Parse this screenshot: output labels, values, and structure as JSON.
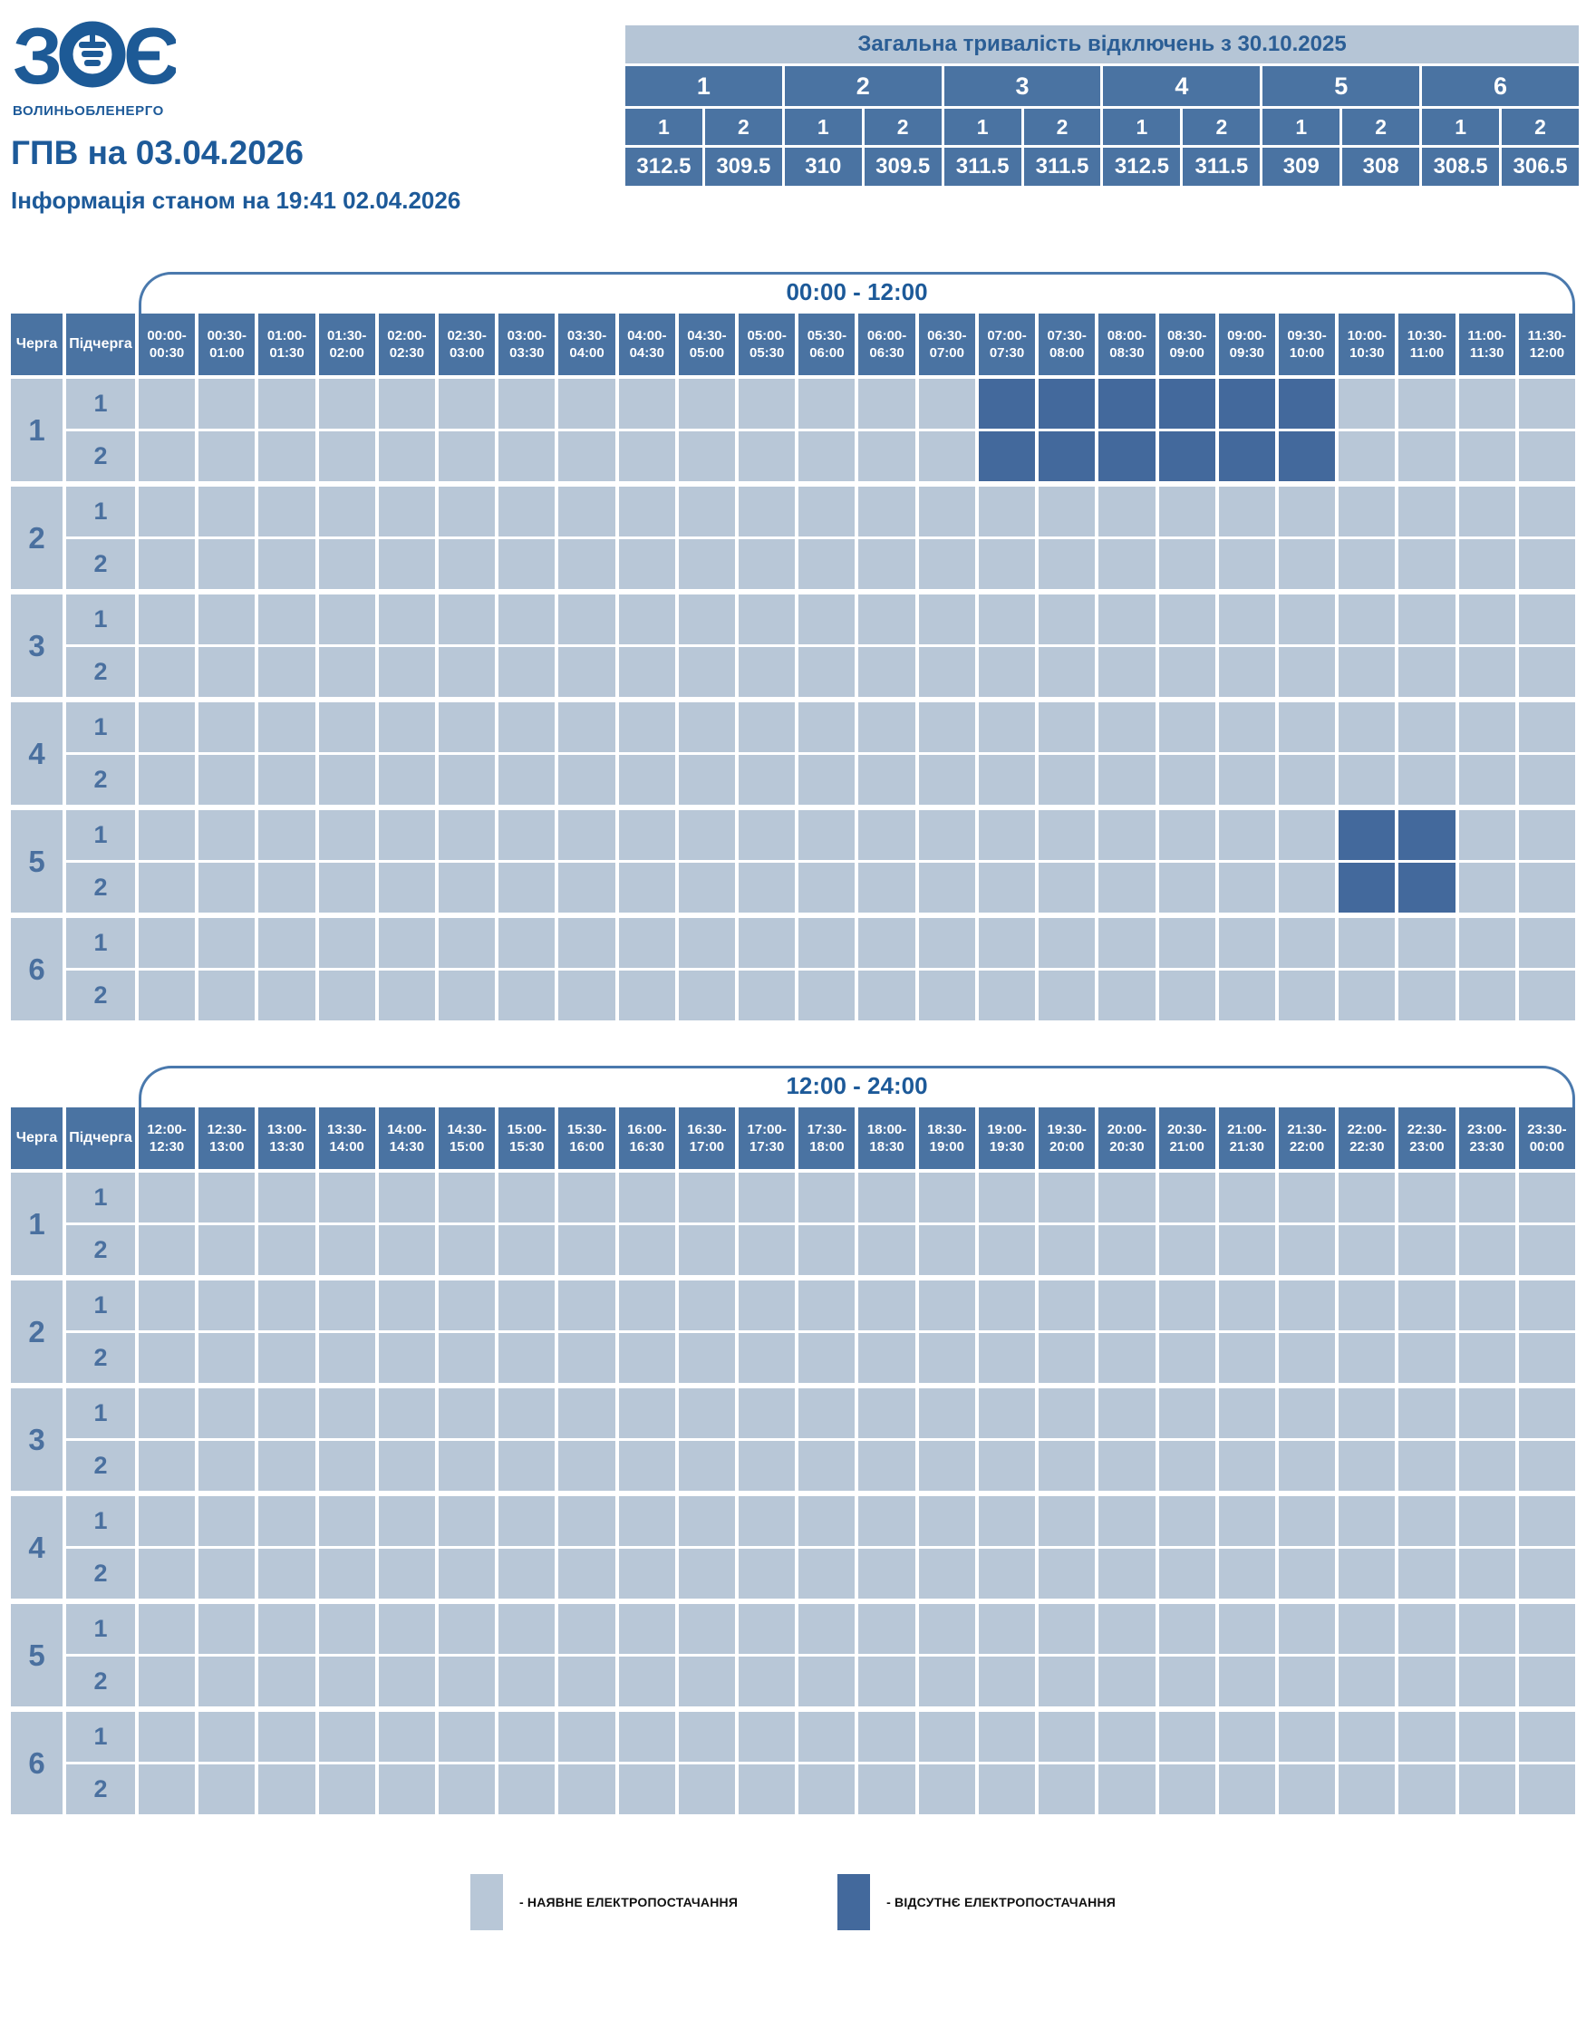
{
  "logo": {
    "letters": [
      "З",
      "О",
      "Є"
    ],
    "subtext": "ВОЛИНЬОБЛЕНЕРГО"
  },
  "page": {
    "title": "ГПВ на 03.04.2026",
    "subtitle": "Інформація станом на 19:41 02.04.2026"
  },
  "summary": {
    "title": "Загальна тривалість відключень з 30.10.2025",
    "queues": [
      "1",
      "2",
      "3",
      "4",
      "5",
      "6"
    ],
    "subqueues": [
      "1",
      "2",
      "1",
      "2",
      "1",
      "2",
      "1",
      "2",
      "1",
      "2",
      "1",
      "2"
    ],
    "values": [
      "312.5",
      "309.5",
      "310",
      "309.5",
      "311.5",
      "311.5",
      "312.5",
      "311.5",
      "309",
      "308",
      "308.5",
      "306.5"
    ]
  },
  "schedule": {
    "col_headers": {
      "queue": "Черга",
      "subqueue": "Підчерга"
    },
    "queues": [
      "1",
      "2",
      "3",
      "4",
      "5",
      "6"
    ],
    "subqueues": [
      "1",
      "2"
    ],
    "tables": [
      {
        "label": "00:00 - 12:00",
        "slots": [
          [
            "00:00",
            "00:30"
          ],
          [
            "00:30",
            "01:00"
          ],
          [
            "01:00",
            "01:30"
          ],
          [
            "01:30",
            "02:00"
          ],
          [
            "02:00",
            "02:30"
          ],
          [
            "02:30",
            "03:00"
          ],
          [
            "03:00",
            "03:30"
          ],
          [
            "03:30",
            "04:00"
          ],
          [
            "04:00",
            "04:30"
          ],
          [
            "04:30",
            "05:00"
          ],
          [
            "05:00",
            "05:30"
          ],
          [
            "05:30",
            "06:00"
          ],
          [
            "06:00",
            "06:30"
          ],
          [
            "06:30",
            "07:00"
          ],
          [
            "07:00",
            "07:30"
          ],
          [
            "07:30",
            "08:00"
          ],
          [
            "08:00",
            "08:30"
          ],
          [
            "08:30",
            "09:00"
          ],
          [
            "09:00",
            "09:30"
          ],
          [
            "09:30",
            "10:00"
          ],
          [
            "10:00",
            "10:30"
          ],
          [
            "10:30",
            "11:00"
          ],
          [
            "11:00",
            "11:30"
          ],
          [
            "11:30",
            "12:00"
          ]
        ],
        "outages": [
          {
            "queue": "1",
            "subqueue": "1",
            "cols": [
              14,
              15,
              16,
              17,
              18,
              19
            ]
          },
          {
            "queue": "1",
            "subqueue": "2",
            "cols": [
              14,
              15,
              16,
              17,
              18,
              19
            ]
          },
          {
            "queue": "5",
            "subqueue": "1",
            "cols": [
              20,
              21
            ]
          },
          {
            "queue": "5",
            "subqueue": "2",
            "cols": [
              20,
              21
            ]
          }
        ]
      },
      {
        "label": "12:00 - 24:00",
        "slots": [
          [
            "12:00",
            "12:30"
          ],
          [
            "12:30",
            "13:00"
          ],
          [
            "13:00",
            "13:30"
          ],
          [
            "13:30",
            "14:00"
          ],
          [
            "14:00",
            "14:30"
          ],
          [
            "14:30",
            "15:00"
          ],
          [
            "15:00",
            "15:30"
          ],
          [
            "15:30",
            "16:00"
          ],
          [
            "16:00",
            "16:30"
          ],
          [
            "16:30",
            "17:00"
          ],
          [
            "17:00",
            "17:30"
          ],
          [
            "17:30",
            "18:00"
          ],
          [
            "18:00",
            "18:30"
          ],
          [
            "18:30",
            "19:00"
          ],
          [
            "19:00",
            "19:30"
          ],
          [
            "19:30",
            "20:00"
          ],
          [
            "20:00",
            "20:30"
          ],
          [
            "20:30",
            "21:00"
          ],
          [
            "21:00",
            "21:30"
          ],
          [
            "21:30",
            "22:00"
          ],
          [
            "22:00",
            "22:30"
          ],
          [
            "22:30",
            "23:00"
          ],
          [
            "23:00",
            "23:30"
          ],
          [
            "23:30",
            "00:00"
          ]
        ],
        "outages": []
      }
    ]
  },
  "legend": [
    {
      "type": "available",
      "label": "- НАЯВНЕ ЕЛЕКТРОПОСТАЧАННЯ"
    },
    {
      "type": "outage",
      "label": "- ВІДСУТНЄ ЕЛЕКТРОПОСТАЧАННЯ"
    }
  ],
  "chart_data": {
    "type": "heatmap",
    "title": "ГПВ на 03.04.2026",
    "rows": [
      "1.1",
      "1.2",
      "2.1",
      "2.2",
      "3.1",
      "3.2",
      "4.1",
      "4.2",
      "5.1",
      "5.2",
      "6.1",
      "6.2"
    ],
    "x_range": [
      "00:00",
      "24:00"
    ],
    "slot_minutes": 30,
    "outage_intervals": {
      "1.1": [
        [
          "07:00",
          "10:00"
        ]
      ],
      "1.2": [
        [
          "07:00",
          "10:00"
        ]
      ],
      "5.1": [
        [
          "10:00",
          "11:00"
        ]
      ],
      "5.2": [
        [
          "10:00",
          "11:00"
        ]
      ]
    },
    "total_outage_hours_since_30_10_2025": {
      "1.1": 312.5,
      "1.2": 309.5,
      "2.1": 310,
      "2.2": 309.5,
      "3.1": 311.5,
      "3.2": 311.5,
      "4.1": 312.5,
      "4.2": 311.5,
      "5.1": 309,
      "5.2": 308,
      "6.1": 308.5,
      "6.2": 306.5
    }
  },
  "colors": {
    "outage": "#43699C",
    "available": "#B8C7D7",
    "table_header": "#4A73A2",
    "summary_header_bg": "#B5C5D6",
    "accent_text": "#1D5A99",
    "queue_number_text": "#4A709F",
    "bracket_line": "#4A79AD",
    "legend_text": "#111111"
  }
}
